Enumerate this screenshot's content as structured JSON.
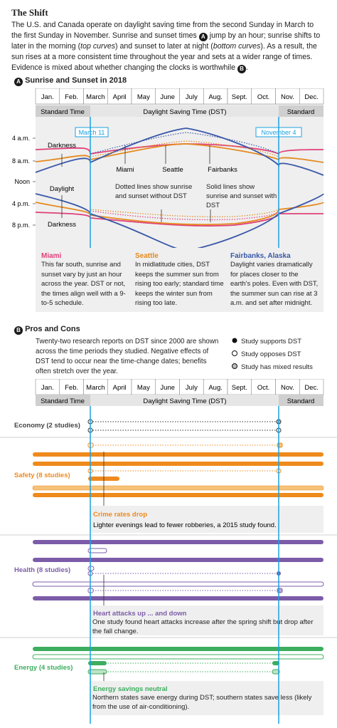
{
  "title": "The Shift",
  "intro": {
    "p1": "The U.S. and Canada operate on daylight saving time from the second Sunday in March to the first Sunday in November. Sunrise and sunset times",
    "badge_a": "A",
    "p2": "jump by an hour; sunrise shifts to later in the morning (",
    "em1": "top curves",
    "p3": ") and sunset to later at night (",
    "em2": "bottom curves",
    "p4": "). As a result, the sun rises at a more consistent time throughout the year and sets at a wider range of times. Evidence is mixed about whether changing the clocks is worthwhile",
    "badge_b": "B",
    "p5": "."
  },
  "months": [
    "Jan.",
    "Feb.",
    "March",
    "April",
    "May",
    "June",
    "July",
    "Aug.",
    "Sept.",
    "Oct.",
    "Nov.",
    "Dec."
  ],
  "periods": {
    "standard_left": "Standard Time",
    "dst": "Daylight Saving Time (DST)",
    "standard_right": "Standard"
  },
  "section_a": {
    "badge": "A",
    "title": "Sunrise and Sunset in 2018",
    "date_start": "March 11",
    "date_end": "November 4",
    "time_ticks": [
      "4 a.m.",
      "8 a.m.",
      "Noon",
      "4 p.m.",
      "8 p.m."
    ],
    "zone_darkness_top": "Darkness",
    "zone_daylight": "Daylight",
    "zone_darkness_bottom": "Darkness",
    "label_miami": "Miami",
    "label_seattle": "Seattle",
    "label_fairbanks": "Fairbanks",
    "note_dotted": "Dotted lines show sunrise and sunset without DST",
    "note_solid": "Solid lines show sunrise and sunset with DST",
    "cities": [
      {
        "name": "Miami",
        "color": "#e0407a",
        "text": "This far south, sunrise and sunset vary by just an hour across the year. DST or not, the times align well with a 9-to-5 schedule."
      },
      {
        "name": "Seattle",
        "color": "#e58a1f",
        "text": "In midlatitude cities, DST keeps the summer sun from rising too early; standard time keeps the winter sun from rising too late."
      },
      {
        "name": "Fairbanks, Alaska",
        "color": "#3a58a8",
        "text": "Daylight varies dramatically for places closer to the earth's poles. Even with DST, the summer sun can rise at 3 a.m. and set after midnight."
      }
    ]
  },
  "section_b": {
    "badge": "B",
    "title": "Pros and Cons",
    "intro": "Twenty-two research reports on DST since 2000 are shown across the time periods they studied. Negative effects of DST tend to occur near the time-change dates; benefits often stretch over the year.",
    "legend": [
      "Study supports DST",
      "Study opposes DST",
      "Study has mixed results"
    ],
    "groups": [
      {
        "label": "Economy (2 studies)",
        "color": "#444444",
        "callout_title": "",
        "callout_text": ""
      },
      {
        "label": "Safety (8 studies)",
        "color": "#ef8a1c",
        "callout_title": "Crime rates drop",
        "callout_text": "Lighter evenings lead to fewer robberies, a 2015 study found."
      },
      {
        "label": "Health (8 studies)",
        "color": "#7c5ca8",
        "callout_title": "Heart attacks up ... and down",
        "callout_text": "One study found heart attacks increase after the spring shift but drop after the fall change."
      },
      {
        "label": "Energy (4 studies)",
        "color": "#3cae5e",
        "callout_title": "Energy savings neutral",
        "callout_text": "Northern states save energy during DST; southern states save less (likely from the use of air-conditioning)."
      }
    ]
  },
  "colors": {
    "miami": "#e0407a",
    "seattle": "#e58a1f",
    "fairbanks": "#3a58a8",
    "dst_line": "#1ba1e2",
    "gray": "#cfcfcf",
    "panel": "#efefef"
  }
}
